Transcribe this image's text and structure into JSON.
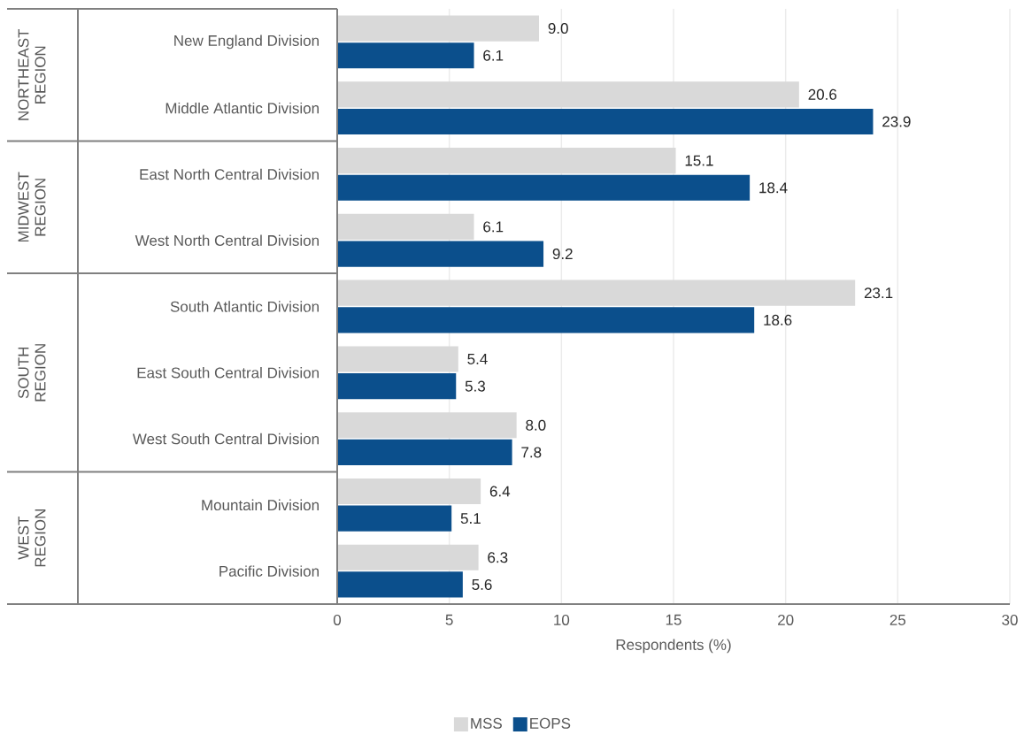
{
  "chart_data": {
    "type": "bar",
    "orientation": "horizontal",
    "xlabel": "Respondents (%)",
    "categories": [
      "New England Division",
      "Middle Atlantic Division",
      "East North Central Division",
      "West North Central Division",
      "South Atlantic Division",
      "East South Central Division",
      "West South Central Division",
      "Mountain Division",
      "Pacific Division"
    ],
    "series": [
      {
        "name": "MSS",
        "color": "#d9d9d9",
        "values": [
          9.0,
          20.6,
          15.1,
          6.1,
          23.1,
          5.4,
          8.0,
          6.4,
          6.3
        ],
        "value_labels": [
          "9.0",
          "20.6",
          "15.1",
          "6.1",
          "23.1",
          "5.4",
          "8.0",
          "6.4",
          "6.3"
        ]
      },
      {
        "name": "EOPS",
        "color": "#0b4f8c",
        "values": [
          6.1,
          23.9,
          18.4,
          9.2,
          18.6,
          5.3,
          7.8,
          5.1,
          5.6
        ],
        "value_labels": [
          "6.1",
          "23.9",
          "18.4",
          "9.2",
          "18.6",
          "5.3",
          "7.8",
          "5.1",
          "5.6"
        ]
      }
    ],
    "xlim": [
      0,
      30
    ],
    "xticks": [
      0,
      5,
      10,
      15,
      20,
      25,
      30
    ],
    "grid": "x",
    "legend": "bottom",
    "annotations": [
      "NORTHEAST REGION",
      "MIDWEST REGION",
      "SOUTH REGION",
      "WEST REGION"
    ]
  }
}
